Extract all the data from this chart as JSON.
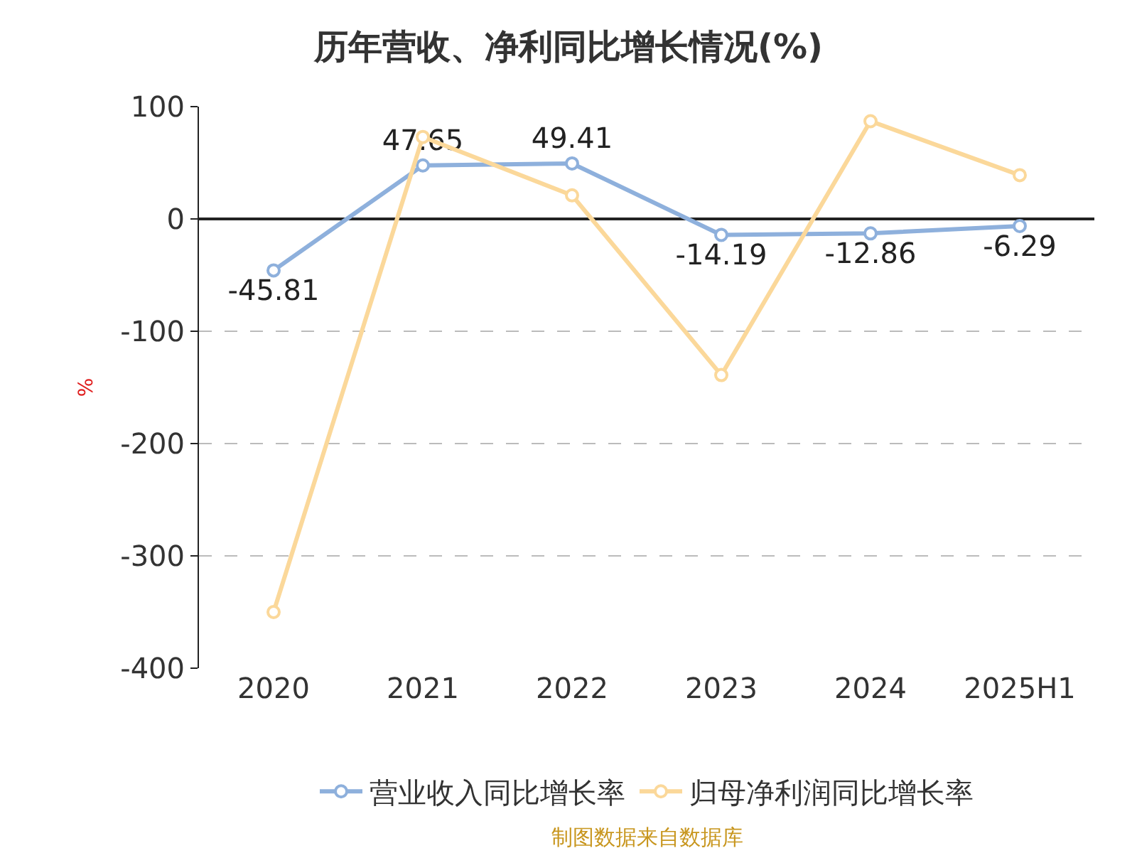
{
  "chart_data": {
    "type": "line",
    "title": "历年营收、净利同比增长情况(%)",
    "ylabel": "%",
    "categories": [
      "2020",
      "2021",
      "2022",
      "2023",
      "2024",
      "2025H1"
    ],
    "series": [
      {
        "name": "营业收入同比增长率",
        "color": "#8eb0dc",
        "values": [
          -45.81,
          47.65,
          49.41,
          -14.19,
          -12.86,
          -6.29
        ],
        "value_labels": [
          "-45.81",
          "47.65",
          "49.41",
          "-14.19",
          "-12.86",
          "-6.29"
        ]
      },
      {
        "name": "归母净利润同比增长率",
        "color": "#fbd89a",
        "values": [
          -350,
          73,
          21,
          -139,
          87,
          39
        ]
      }
    ],
    "ylim": [
      -400,
      100
    ],
    "yticks": [
      -400,
      -300,
      -200,
      -100,
      0,
      100
    ],
    "grid": "y",
    "legend": "bottom",
    "marker": "circle",
    "line_style": "solid",
    "annotations": [
      "制图数据来自数据库"
    ]
  }
}
